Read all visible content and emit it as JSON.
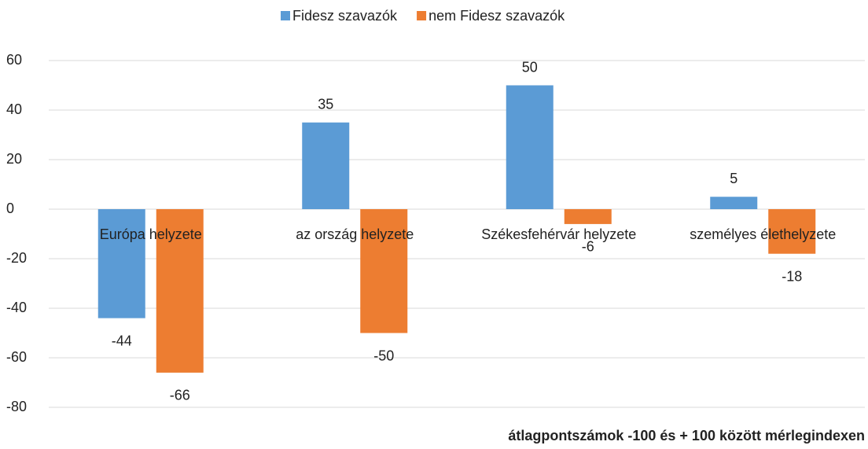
{
  "chart_data": {
    "type": "bar",
    "categories": [
      "Európa helyzete",
      "az ország helyzete",
      "Székesfehérvár helyzete",
      "személyes élethelyzete"
    ],
    "series": [
      {
        "name": "Fidesz szavazók",
        "color": "#5b9bd5",
        "values": [
          -44,
          35,
          50,
          5
        ]
      },
      {
        "name": "nem Fidesz szavazók",
        "color": "#ed7d31",
        "values": [
          -66,
          -50,
          -6,
          -18
        ]
      }
    ],
    "ylim": [
      -80,
      60
    ],
    "yticks": [
      -80,
      -60,
      -40,
      -20,
      0,
      20,
      40,
      60
    ],
    "grid": true,
    "legend": "top",
    "x_label": "átlagpontszámok -100 és + 100 között mérlegindexen"
  }
}
